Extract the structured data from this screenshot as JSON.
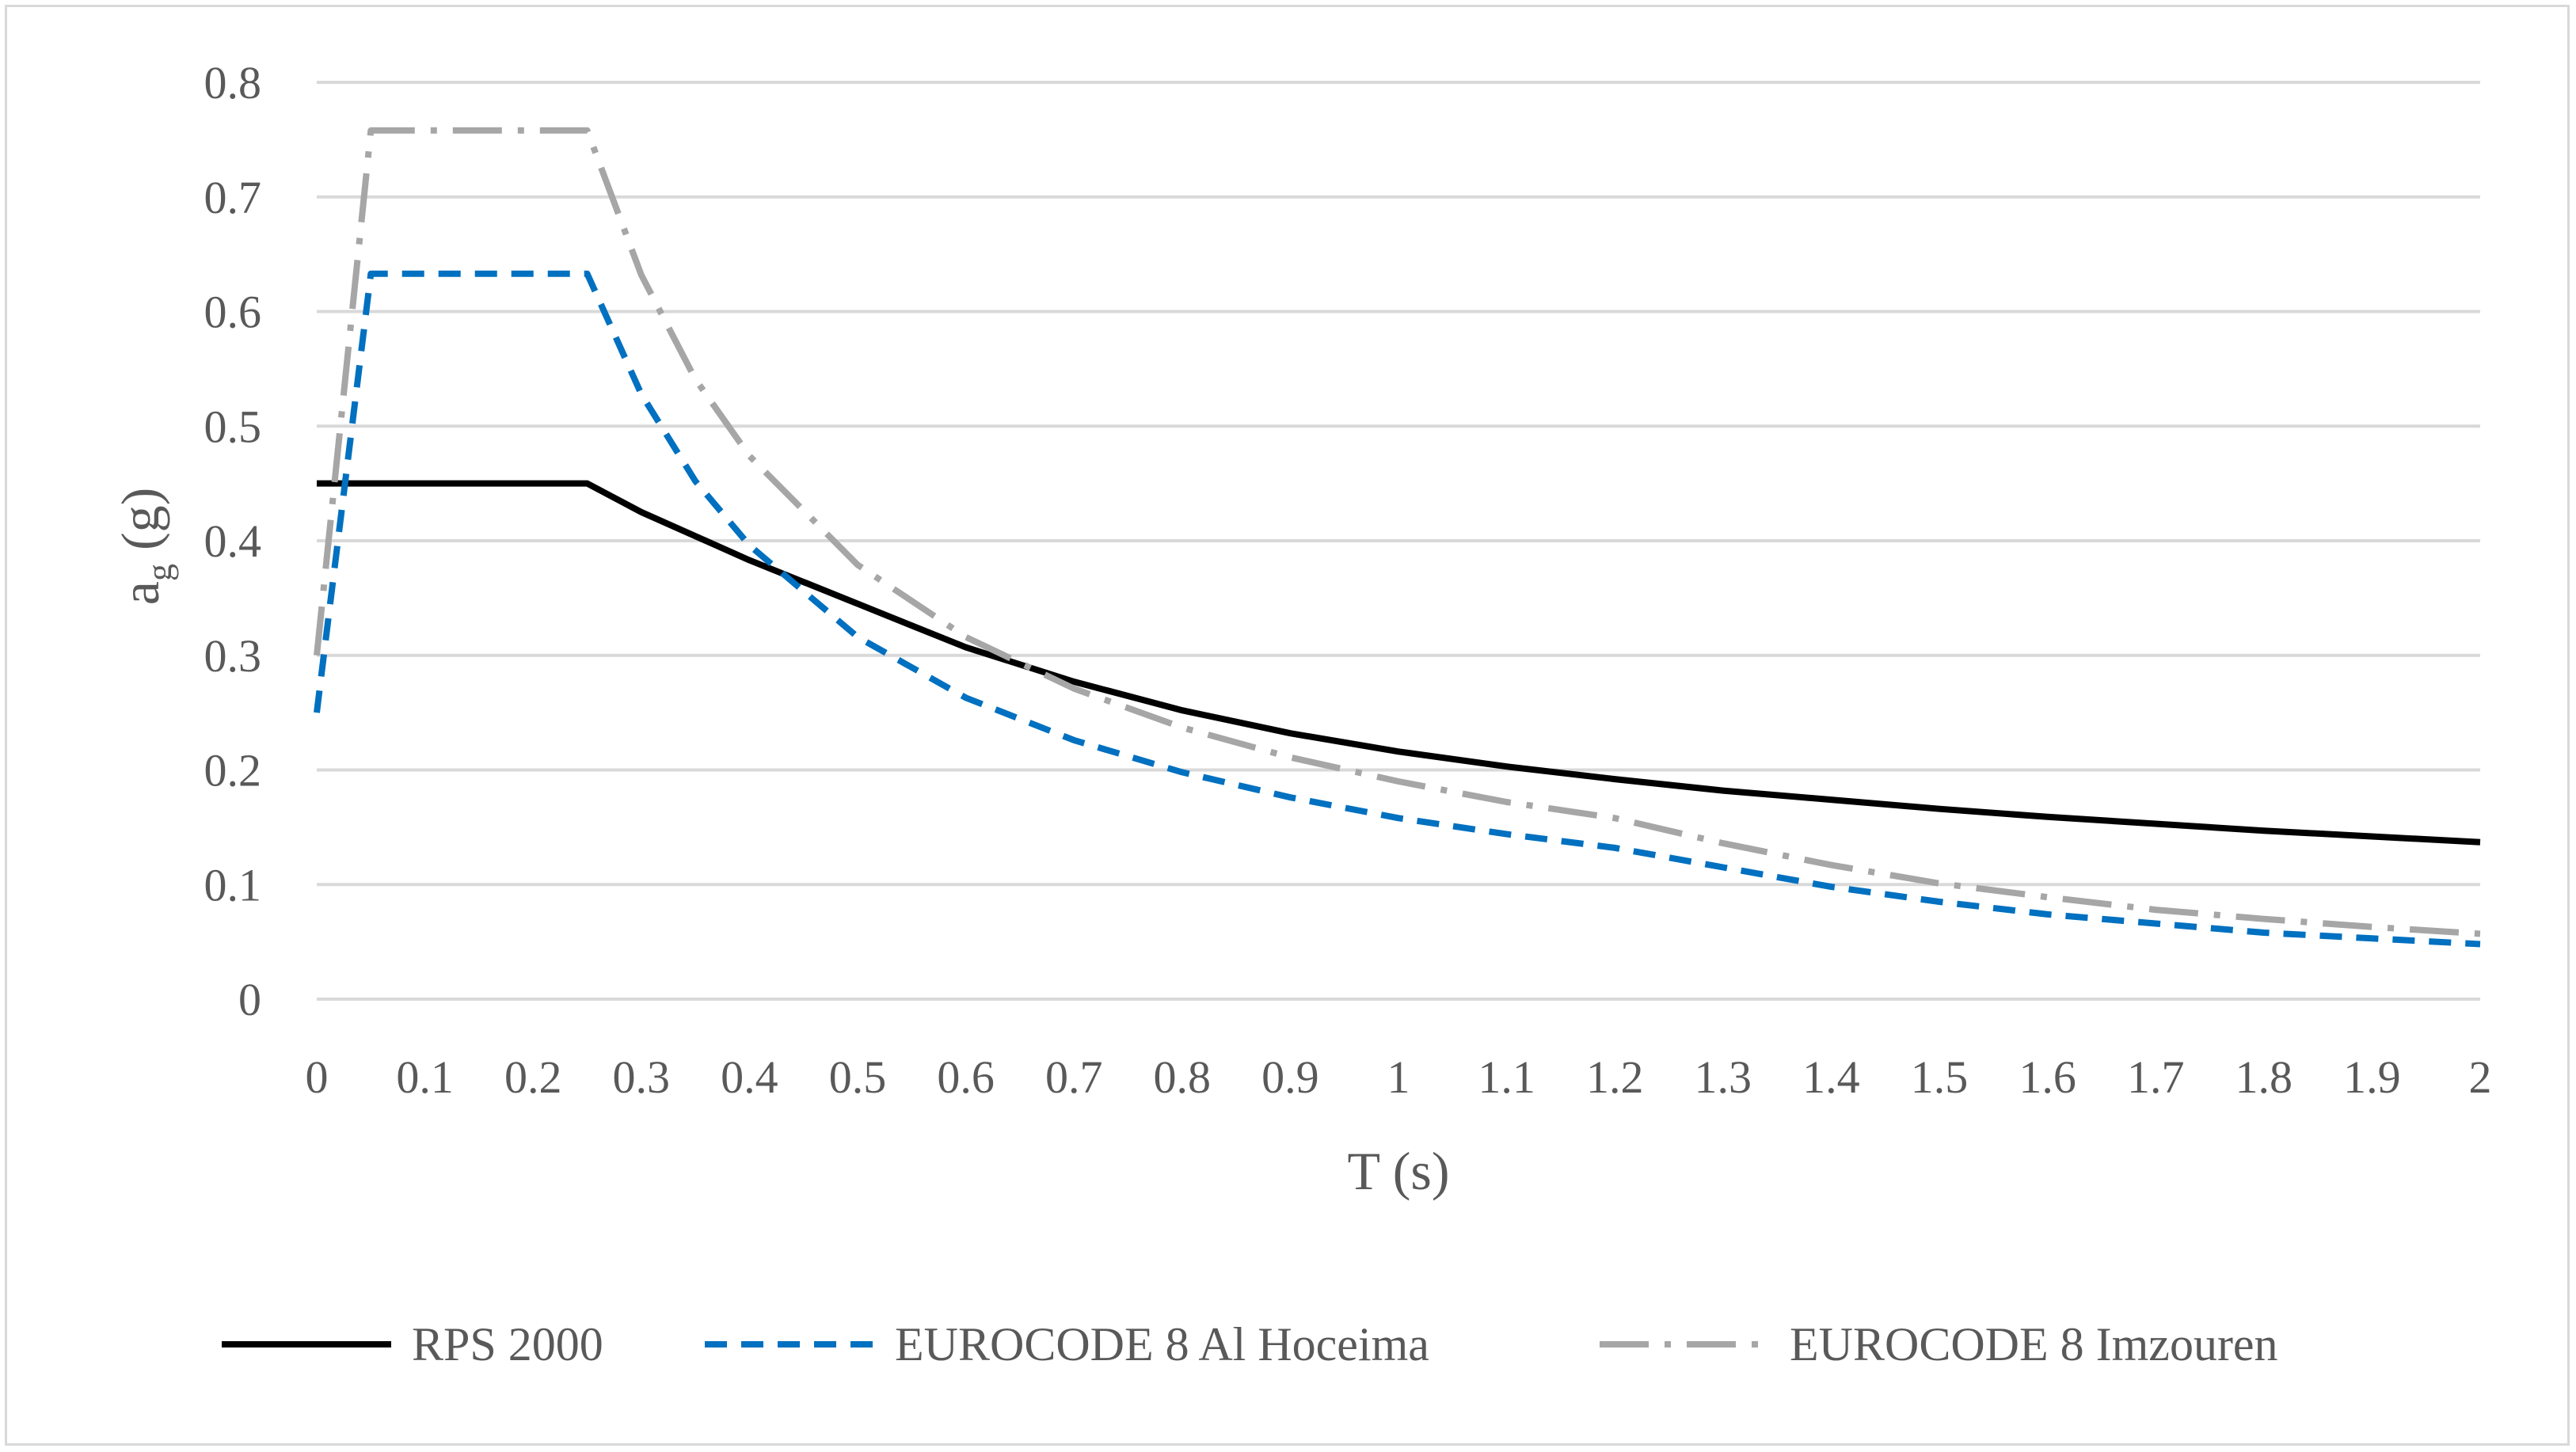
{
  "chart_data": {
    "type": "line",
    "title": "",
    "xlabel": "T (s)",
    "ylabel": {
      "main": "a",
      "sub": "g",
      "unit": " (g)"
    },
    "xlim": [
      0,
      2
    ],
    "ylim": [
      0,
      0.8
    ],
    "x_ticks": [
      "0",
      "0.1",
      "0.2",
      "0.3",
      "0.4",
      "0.5",
      "0.6",
      "0.7",
      "0.8",
      "0.9",
      "1",
      "1.1",
      "1.2",
      "1.3",
      "1.4",
      "1.5",
      "1.6",
      "1.7",
      "1.8",
      "1.9",
      "2"
    ],
    "y_ticks": [
      "0",
      "0.1",
      "0.2",
      "0.3",
      "0.4",
      "0.5",
      "0.6",
      "0.7",
      "0.8"
    ],
    "grid": true,
    "legend_position": "bottom",
    "series": [
      {
        "name": "RPS 2000",
        "color": "#000000",
        "dash": "solid",
        "points": [
          [
            0,
            0.45
          ],
          [
            0.25,
            0.45
          ],
          [
            0.3,
            0.425
          ],
          [
            0.4,
            0.383
          ],
          [
            0.5,
            0.345
          ],
          [
            0.6,
            0.307
          ],
          [
            0.7,
            0.277
          ],
          [
            0.8,
            0.252
          ],
          [
            0.9,
            0.232
          ],
          [
            1.0,
            0.216
          ],
          [
            1.1,
            0.203
          ],
          [
            1.2,
            0.192
          ],
          [
            1.3,
            0.182
          ],
          [
            1.4,
            0.174
          ],
          [
            1.5,
            0.166
          ],
          [
            1.6,
            0.159
          ],
          [
            1.7,
            0.153
          ],
          [
            1.8,
            0.147
          ],
          [
            1.9,
            0.142
          ],
          [
            2.0,
            0.137
          ]
        ]
      },
      {
        "name": "EUROCODE 8 Al Hoceima",
        "color": "#0070c0",
        "dash": "dash",
        "points": [
          [
            0,
            0.25
          ],
          [
            0.05,
            0.633
          ],
          [
            0.25,
            0.633
          ],
          [
            0.3,
            0.528
          ],
          [
            0.35,
            0.452
          ],
          [
            0.4,
            0.396
          ],
          [
            0.5,
            0.316
          ],
          [
            0.6,
            0.263
          ],
          [
            0.7,
            0.226
          ],
          [
            0.8,
            0.198
          ],
          [
            0.9,
            0.176
          ],
          [
            1.0,
            0.158
          ],
          [
            1.1,
            0.144
          ],
          [
            1.2,
            0.132
          ],
          [
            1.3,
            0.115
          ],
          [
            1.4,
            0.098
          ],
          [
            1.5,
            0.085
          ],
          [
            1.6,
            0.074
          ],
          [
            1.7,
            0.066
          ],
          [
            1.8,
            0.058
          ],
          [
            1.9,
            0.053
          ],
          [
            2.0,
            0.048
          ]
        ]
      },
      {
        "name": "EUROCODE 8 Imzouren",
        "color": "#a6a6a6",
        "dash": "dashdot",
        "points": [
          [
            0,
            0.3
          ],
          [
            0.05,
            0.758
          ],
          [
            0.25,
            0.758
          ],
          [
            0.3,
            0.632
          ],
          [
            0.35,
            0.541
          ],
          [
            0.4,
            0.474
          ],
          [
            0.5,
            0.379
          ],
          [
            0.6,
            0.316
          ],
          [
            0.7,
            0.271
          ],
          [
            0.8,
            0.237
          ],
          [
            0.9,
            0.211
          ],
          [
            1.0,
            0.19
          ],
          [
            1.1,
            0.172
          ],
          [
            1.2,
            0.158
          ],
          [
            1.3,
            0.136
          ],
          [
            1.4,
            0.117
          ],
          [
            1.5,
            0.101
          ],
          [
            1.6,
            0.089
          ],
          [
            1.7,
            0.078
          ],
          [
            1.8,
            0.07
          ],
          [
            1.9,
            0.063
          ],
          [
            2.0,
            0.057
          ]
        ]
      }
    ]
  }
}
